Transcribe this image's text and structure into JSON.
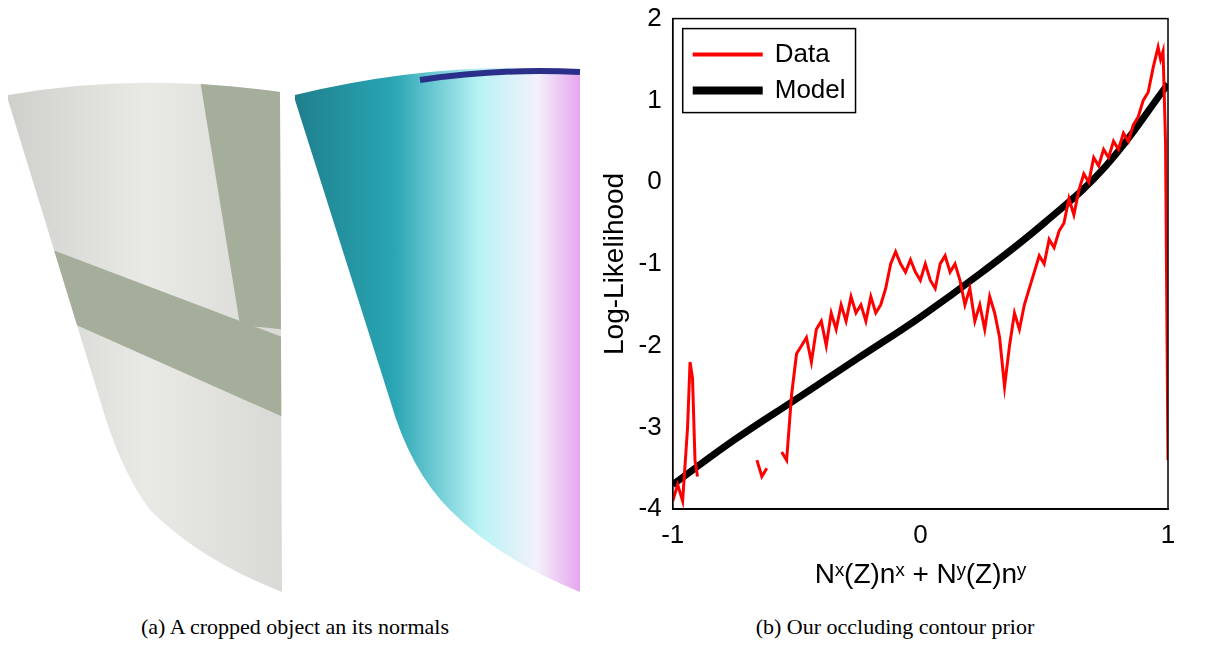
{
  "panels": [
    {
      "caption": "(a) A cropped object an its normals"
    },
    {
      "caption": "(b) Our occluding contour prior"
    }
  ],
  "chart_data": {
    "type": "line",
    "x_label": "Nˣ(Z)nˣ + Nʸ(Z)nʸ",
    "y_label": "Log-Likelihood",
    "xlim": [
      -1,
      1
    ],
    "xticks": [
      -1,
      0,
      1
    ],
    "ylim": [
      -4,
      2
    ],
    "yticks": [
      -4,
      -3,
      -2,
      -1,
      0,
      1,
      2
    ],
    "grid": false,
    "legend": "upper left",
    "series": [
      {
        "name": "Data",
        "color": "#ff0000",
        "x": [
          -1.0,
          -0.98,
          -0.96,
          -0.94,
          -0.93,
          -0.92,
          -0.91,
          -0.9,
          -0.88,
          -0.66,
          -0.64,
          -0.62,
          -0.6,
          -0.56,
          -0.54,
          -0.52,
          -0.5,
          -0.48,
          -0.46,
          -0.44,
          -0.42,
          -0.4,
          -0.38,
          -0.36,
          -0.34,
          -0.32,
          -0.3,
          -0.28,
          -0.26,
          -0.24,
          -0.22,
          -0.2,
          -0.18,
          -0.16,
          -0.14,
          -0.12,
          -0.1,
          -0.08,
          -0.06,
          -0.04,
          -0.02,
          0.0,
          0.02,
          0.04,
          0.06,
          0.08,
          0.1,
          0.12,
          0.14,
          0.16,
          0.18,
          0.2,
          0.22,
          0.24,
          0.26,
          0.28,
          0.3,
          0.32,
          0.34,
          0.36,
          0.38,
          0.4,
          0.42,
          0.44,
          0.46,
          0.48,
          0.5,
          0.52,
          0.54,
          0.56,
          0.58,
          0.6,
          0.62,
          0.64,
          0.66,
          0.68,
          0.7,
          0.72,
          0.74,
          0.76,
          0.78,
          0.8,
          0.82,
          0.84,
          0.86,
          0.88,
          0.9,
          0.92,
          0.94,
          0.96,
          0.97,
          0.98,
          0.99,
          1.0
        ],
        "values": [
          -3.9,
          -3.7,
          -3.9,
          -3.0,
          -2.2,
          -2.4,
          -3.4,
          -3.6,
          null,
          -3.4,
          -3.6,
          -3.5,
          null,
          -3.3,
          -3.4,
          -2.6,
          -2.1,
          -2.0,
          -1.9,
          -2.2,
          -1.8,
          -1.7,
          -2.0,
          -1.6,
          -1.8,
          -1.5,
          -1.7,
          -1.4,
          -1.6,
          -1.5,
          -1.7,
          -1.4,
          -1.6,
          -1.5,
          -1.3,
          -1.0,
          -0.85,
          -1.0,
          -1.1,
          -0.95,
          -1.1,
          -1.2,
          -1.0,
          -1.2,
          -1.3,
          -1.0,
          -0.9,
          -1.1,
          -1.0,
          -1.2,
          -1.5,
          -1.3,
          -1.7,
          -1.5,
          -1.8,
          -1.4,
          -1.6,
          -1.9,
          -2.5,
          -2.0,
          -1.6,
          -1.8,
          -1.5,
          -1.3,
          -1.1,
          -0.9,
          -1.0,
          -0.7,
          -0.8,
          -0.6,
          -0.5,
          -0.2,
          -0.4,
          -0.1,
          0.1,
          0.0,
          0.3,
          0.2,
          0.4,
          0.3,
          0.5,
          0.4,
          0.6,
          0.5,
          0.7,
          0.8,
          1.0,
          1.1,
          1.4,
          1.65,
          1.5,
          1.6,
          0.5,
          -3.4
        ]
      },
      {
        "name": "Model",
        "color": "#000000",
        "x": [
          -1.0,
          -0.75,
          -0.5,
          -0.25,
          0.0,
          0.25,
          0.5,
          0.75,
          1.0
        ],
        "values": [
          -3.7,
          -3.15,
          -2.65,
          -2.15,
          -1.65,
          -1.1,
          -0.5,
          0.2,
          1.2
        ]
      }
    ]
  }
}
